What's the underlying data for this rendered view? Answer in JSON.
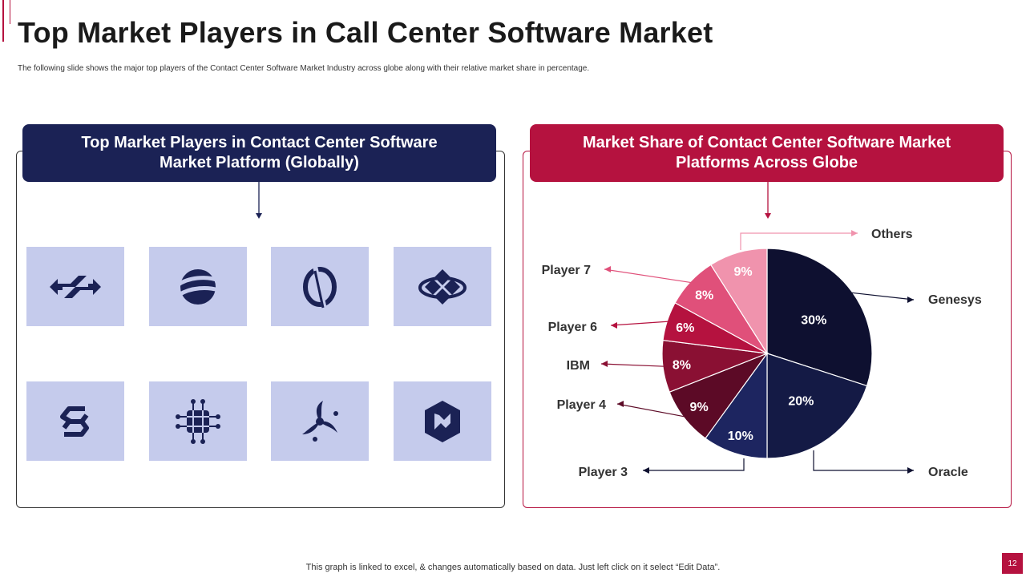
{
  "slide": {
    "title": "Top Market Players in Call Center Software Market",
    "subtitle": "The following slide shows the major top players of the Contact Center Software Market Industry across globe along with their relative market share in percentage.",
    "footnote": "This graph is linked to excel,  & changes automatically based on data. Just left click on it select “Edit Data”.",
    "page_number": "12"
  },
  "left_panel": {
    "heading": "Top Market Players in Contact Center Software Market Platform (Globally)",
    "logos": [
      "chevron-links-logo-icon",
      "globe-swoosh-logo-icon",
      "circle-slash-logo-icon",
      "diamond-orbit-logo-icon",
      "hexagon-s-logo-icon",
      "circuit-grid-logo-icon",
      "tri-swirl-logo-icon",
      "hexagon-n-logo-icon"
    ]
  },
  "right_panel": {
    "heading": "Market Share of Contact Center Software Market Platforms Across Globe"
  },
  "colors": {
    "navy": "#1b2255",
    "crimson": "#b5123f",
    "tile": "#c5cbec"
  },
  "chart_data": {
    "type": "pie",
    "unit": "%",
    "slices": [
      {
        "name": "Genesys",
        "value": 30,
        "label": "30%",
        "color": "#0e1030"
      },
      {
        "name": "Oracle",
        "value": 20,
        "label": "20%",
        "color": "#141a45"
      },
      {
        "name": "Player 3",
        "value": 10,
        "label": "10%",
        "color": "#1d2560"
      },
      {
        "name": "Player 4",
        "value": 9,
        "label": "9%",
        "color": "#5c0a26"
      },
      {
        "name": "IBM",
        "value": 8,
        "label": "8%",
        "color": "#8a1033"
      },
      {
        "name": "Player 6",
        "value": 6,
        "label": "6%",
        "color": "#b5123f"
      },
      {
        "name": "Player 7",
        "value": 8,
        "label": "8%",
        "color": "#e0507a"
      },
      {
        "name": "Others",
        "value": 9,
        "label": "9%",
        "color": "#f093ad"
      }
    ]
  }
}
